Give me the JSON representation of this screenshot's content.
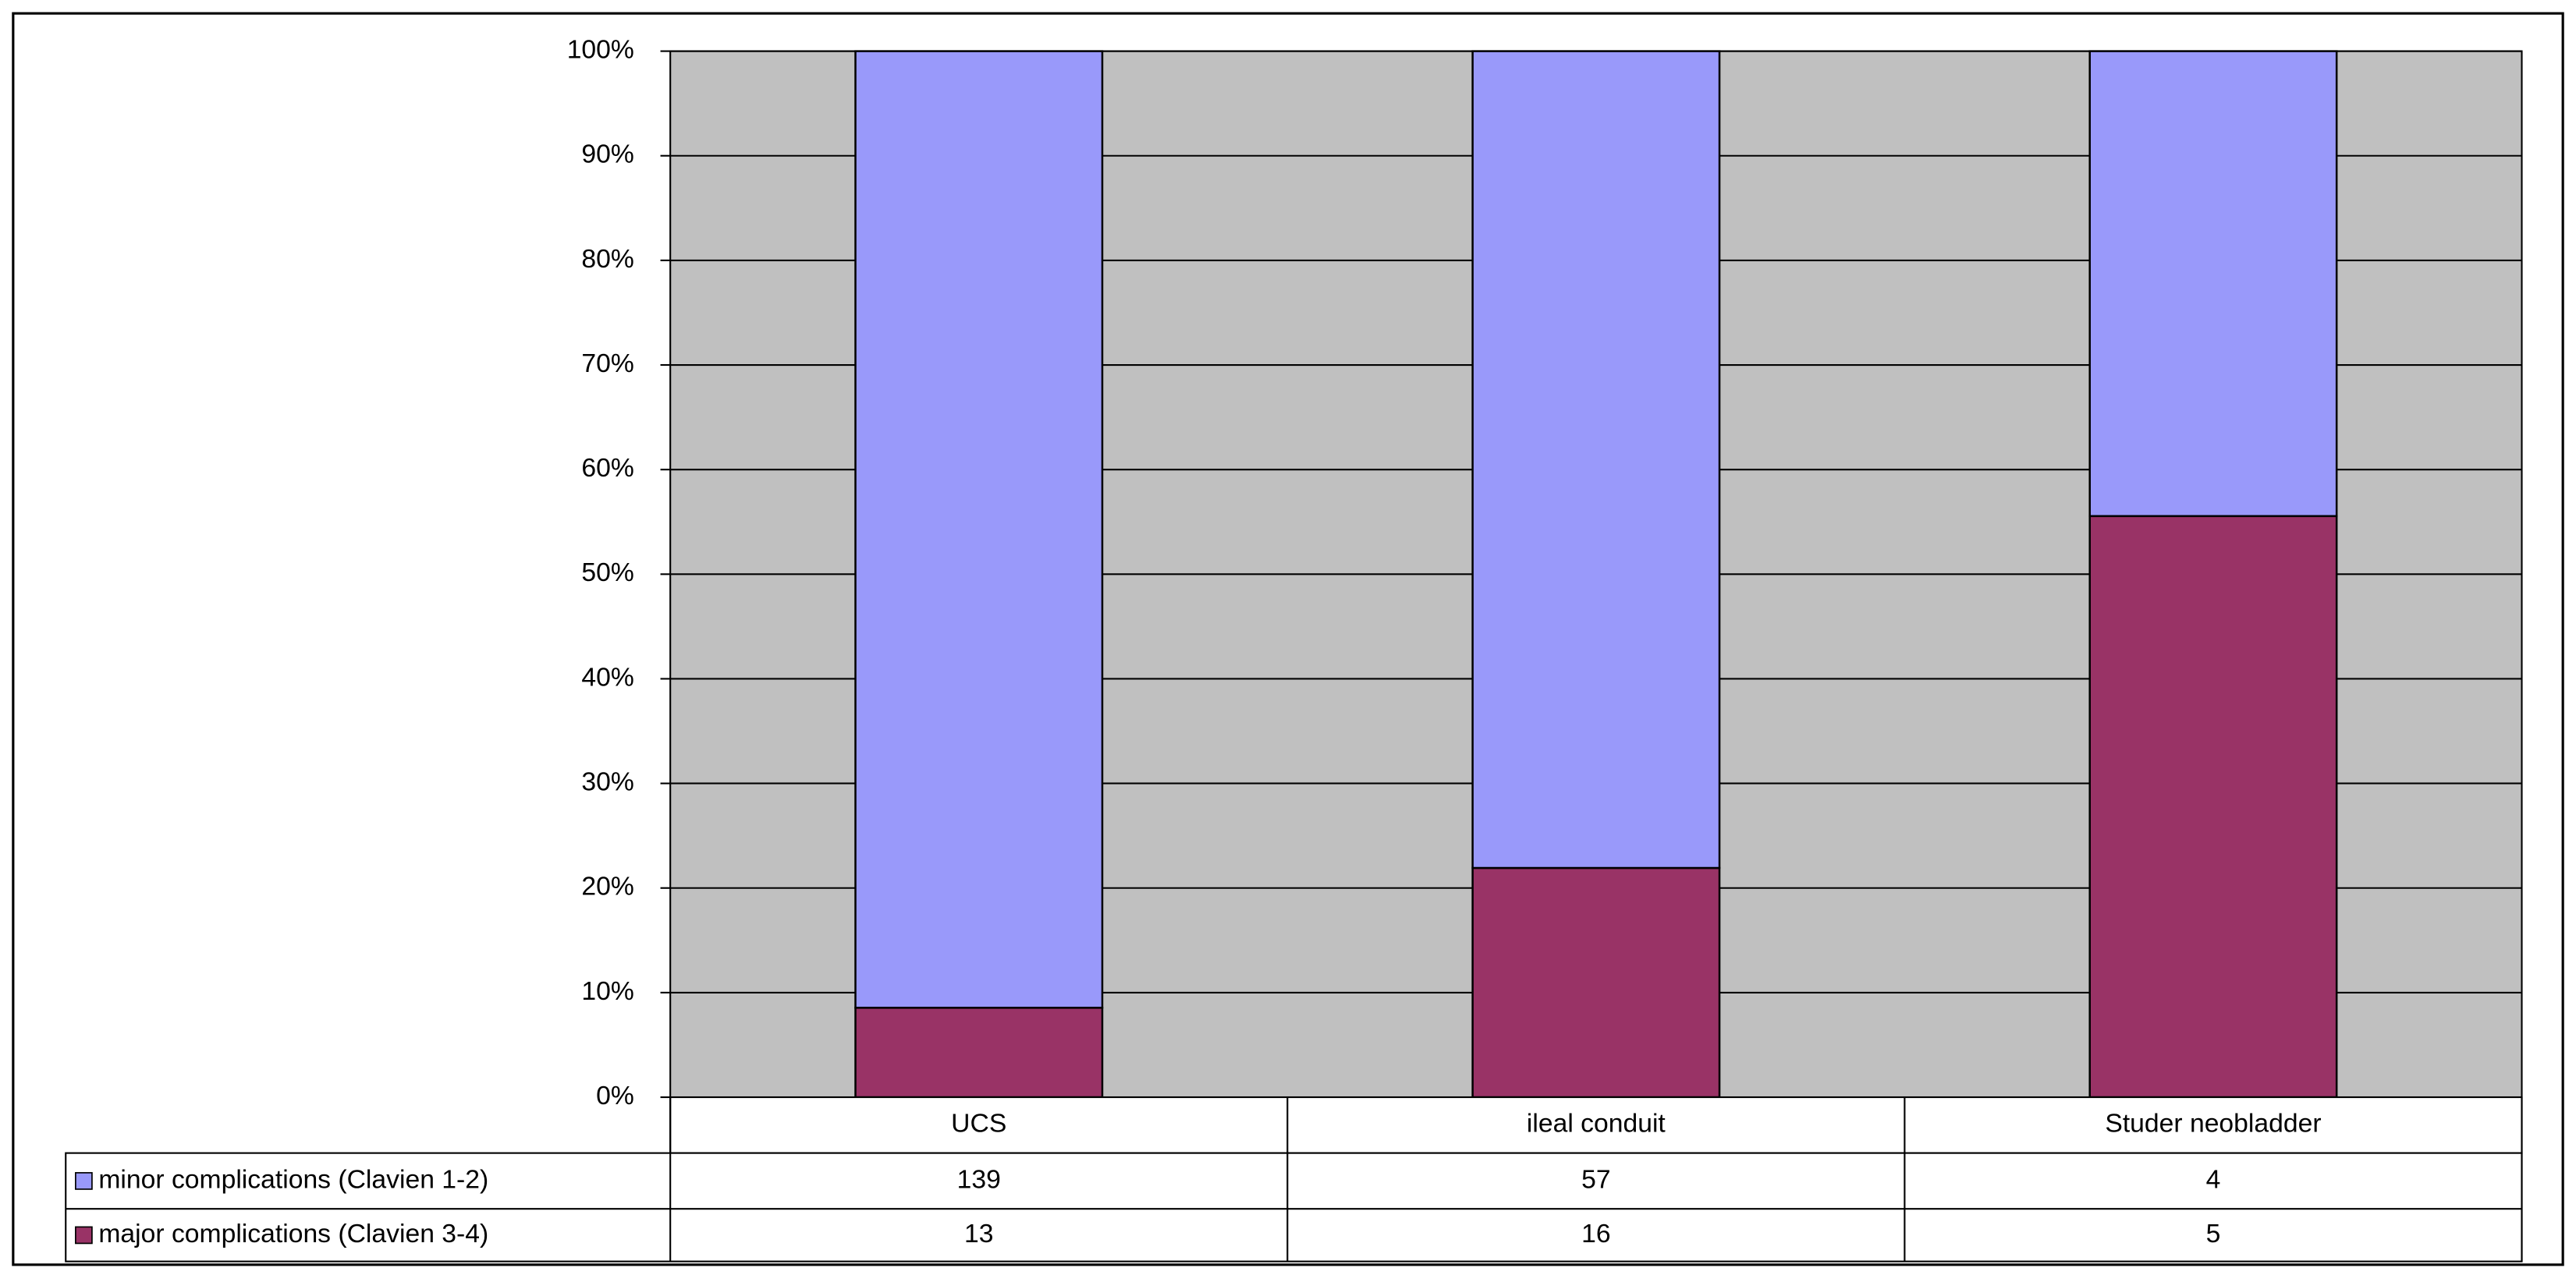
{
  "chart_data": {
    "type": "bar",
    "stacking": "percent",
    "categories": [
      "UCS",
      "ileal conduit",
      "Studer neobladder"
    ],
    "series": [
      {
        "name": "minor complications (Clavien 1-2)",
        "color": "#9999fa",
        "values": [
          139,
          57,
          4
        ]
      },
      {
        "name": "major complications (Clavien 3-4)",
        "color": "#993366",
        "values": [
          13,
          16,
          5
        ]
      }
    ],
    "ylim": [
      0,
      100
    ],
    "yticks": [
      {
        "value": 0,
        "label": "0%"
      },
      {
        "value": 10,
        "label": "10%"
      },
      {
        "value": 20,
        "label": "20%"
      },
      {
        "value": 30,
        "label": "30%"
      },
      {
        "value": 40,
        "label": "40%"
      },
      {
        "value": 50,
        "label": "50%"
      },
      {
        "value": 60,
        "label": "60%"
      },
      {
        "value": 70,
        "label": "70%"
      },
      {
        "value": 80,
        "label": "80%"
      },
      {
        "value": 90,
        "label": "90%"
      },
      {
        "value": 100,
        "label": "100%"
      }
    ],
    "grid": true,
    "plot_background": "#c0c0c0",
    "data_table": true
  }
}
